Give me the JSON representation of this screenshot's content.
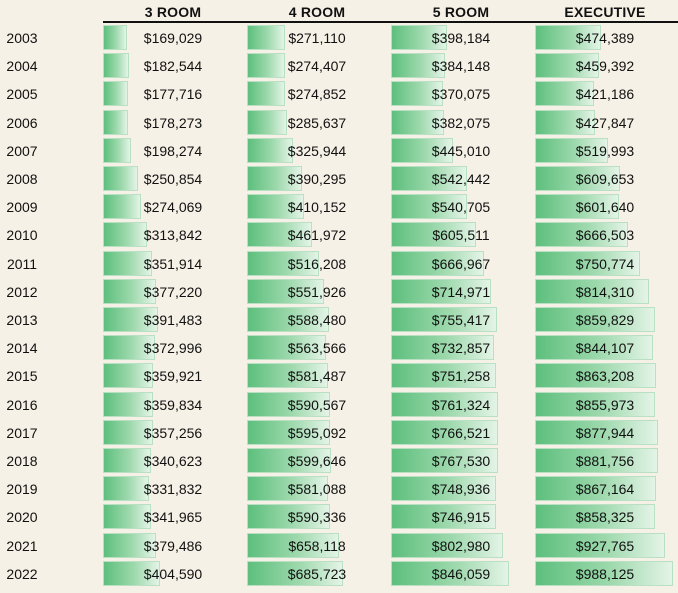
{
  "chart_data": {
    "type": "table",
    "title": "",
    "columns": [
      "3 ROOM",
      "4 ROOM",
      "5 ROOM",
      "EXECUTIVE"
    ],
    "years": [
      "2003",
      "2004",
      "2005",
      "2006",
      "2007",
      "2008",
      "2009",
      "2010",
      "2011",
      "2012",
      "2013",
      "2014",
      "2015",
      "2016",
      "2017",
      "2018",
      "2019",
      "2020",
      "2021",
      "2022"
    ],
    "series": [
      {
        "name": "3 ROOM",
        "values": [
          169029,
          182544,
          177716,
          178273,
          198274,
          250854,
          274069,
          313842,
          351914,
          377220,
          391483,
          372996,
          359921,
          359834,
          357256,
          340623,
          331832,
          341965,
          379486,
          404590
        ],
        "labels": [
          "$169,029",
          "$182,544",
          "$177,716",
          "$178,273",
          "$198,274",
          "$250,854",
          "$274,069",
          "$313,842",
          "$351,914",
          "$377,220",
          "$391,483",
          "$372,996",
          "$359,921",
          "$359,834",
          "$357,256",
          "$340,623",
          "$331,832",
          "$341,965",
          "$379,486",
          "$404,590"
        ]
      },
      {
        "name": "4 ROOM",
        "values": [
          271110,
          274407,
          274852,
          285637,
          325944,
          390295,
          410152,
          461972,
          516208,
          551926,
          588480,
          563566,
          581487,
          590567,
          595092,
          599646,
          581088,
          590336,
          658118,
          685723
        ],
        "labels": [
          "$271,110",
          "$274,407",
          "$274,852",
          "$285,637",
          "$325,944",
          "$390,295",
          "$410,152",
          "$461,972",
          "$516,208",
          "$551,926",
          "$588,480",
          "$563,566",
          "$581,487",
          "$590,567",
          "$595,092",
          "$599,646",
          "$581,088",
          "$590,336",
          "$658,118",
          "$685,723"
        ]
      },
      {
        "name": "5 ROOM",
        "values": [
          398184,
          384148,
          370075,
          382075,
          445010,
          542442,
          540705,
          605511,
          666967,
          714971,
          755417,
          732857,
          751258,
          761324,
          766521,
          767530,
          748936,
          746915,
          802980,
          846059
        ],
        "labels": [
          "$398,184",
          "$384,148",
          "$370,075",
          "$382,075",
          "$445,010",
          "$542,442",
          "$540,705",
          "$605,511",
          "$666,967",
          "$714,971",
          "$755,417",
          "$732,857",
          "$751,258",
          "$761,324",
          "$766,521",
          "$767,530",
          "$748,936",
          "$746,915",
          "$802,980",
          "$846,059"
        ]
      },
      {
        "name": "EXECUTIVE",
        "values": [
          474389,
          459392,
          421186,
          427847,
          519993,
          609653,
          601640,
          666503,
          750774,
          814310,
          859829,
          844107,
          863208,
          855973,
          877944,
          881756,
          867164,
          858325,
          927765,
          988125
        ],
        "labels": [
          "$474,389",
          "$459,392",
          "$421,186",
          "$427,847",
          "$519,993",
          "$609,653",
          "$601,640",
          "$666,503",
          "$750,774",
          "$814,310",
          "$859,829",
          "$844,107",
          "$863,208",
          "$855,973",
          "$877,944",
          "$881,756",
          "$867,164",
          "$858,325",
          "$927,765",
          "$988,125"
        ]
      }
    ],
    "colors": {
      "bar_start": "#5dbf7d",
      "bar_end": "#e4f4e7",
      "background": "#f6f1e6"
    }
  }
}
